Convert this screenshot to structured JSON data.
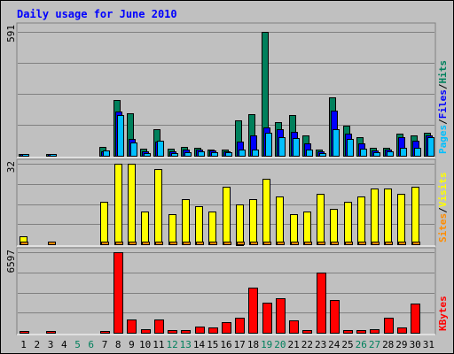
{
  "chart_data": {
    "type": "bar",
    "title": "Daily usage for June 2010",
    "days": [
      "1",
      "2",
      "3",
      "4",
      "5",
      "6",
      "7",
      "8",
      "9",
      "10",
      "11",
      "12",
      "13",
      "14",
      "15",
      "16",
      "17",
      "18",
      "19",
      "20",
      "21",
      "22",
      "23",
      "24",
      "25",
      "26",
      "27",
      "28",
      "29",
      "30",
      "31"
    ],
    "weekend_days": [
      "5",
      "6",
      "12",
      "13",
      "19",
      "20",
      "26",
      "27"
    ],
    "hits_panel": {
      "max_label": "591",
      "ymax": 591,
      "series": [
        {
          "name": "Hits",
          "color": "#00805c",
          "values": [
            4,
            0,
            8,
            0,
            0,
            0,
            44,
            268,
            202,
            34,
            128,
            32,
            44,
            40,
            30,
            28,
            168,
            200,
            591,
            162,
            196,
            98,
            30,
            280,
            142,
            90,
            36,
            36,
            106,
            96,
            110
          ]
        },
        {
          "name": "Files",
          "color": "#0000ff",
          "values": [
            3,
            0,
            5,
            0,
            0,
            0,
            22,
            212,
            82,
            22,
            66,
            20,
            30,
            30,
            24,
            22,
            68,
            96,
            136,
            126,
            112,
            58,
            20,
            214,
            104,
            58,
            26,
            28,
            88,
            72,
            98
          ]
        },
        {
          "name": "Pages",
          "color": "#00bfff",
          "values": [
            2,
            0,
            3,
            0,
            0,
            0,
            24,
            196,
            62,
            12,
            70,
            14,
            18,
            22,
            16,
            16,
            30,
            28,
            108,
            90,
            86,
            30,
            14,
            126,
            82,
            34,
            18,
            20,
            36,
            38,
            88
          ]
        }
      ],
      "legend": [
        {
          "label": "Pages",
          "color": "#00bfff"
        },
        {
          "label": "Files",
          "color": "#0000ff"
        },
        {
          "label": "Hits",
          "color": "#00805c"
        }
      ]
    },
    "visits_panel": {
      "max_label": "32",
      "ymax": 32,
      "series": [
        {
          "name": "Visits",
          "color": "#ffff00",
          "values": [
            3,
            0,
            0,
            0,
            0,
            0,
            17,
            32,
            32,
            13,
            30,
            12,
            18,
            15,
            13,
            23,
            16,
            18,
            26,
            19,
            12,
            13,
            20,
            14,
            17,
            19,
            22,
            22,
            20,
            23,
            0
          ]
        },
        {
          "name": "Sites",
          "color": "#ff8c00",
          "values": [
            1,
            0,
            1,
            0,
            0,
            0,
            1,
            1,
            1,
            1,
            1,
            1,
            1,
            1,
            1,
            1,
            1,
            1,
            1,
            1,
            1,
            1,
            1,
            1,
            1,
            1,
            1,
            1,
            1,
            1,
            0
          ]
        }
      ],
      "legend": [
        {
          "label": "Sites",
          "color": "#ff8c00"
        },
        {
          "label": "Visits",
          "color": "#ffff00"
        }
      ]
    },
    "kbytes_panel": {
      "max_label": "6597",
      "ymax": 6597,
      "series": [
        {
          "name": "KBytes",
          "color": "#ff0000",
          "values": [
            80,
            0,
            100,
            0,
            0,
            0,
            150,
            6597,
            1100,
            270,
            1100,
            220,
            250,
            500,
            430,
            900,
            1240,
            3700,
            2450,
            2850,
            990,
            200,
            4900,
            2700,
            190,
            250,
            300,
            1200,
            400,
            2400,
            0
          ]
        }
      ],
      "legend": [
        {
          "label": "KBytes",
          "color": "#ff0000"
        }
      ]
    }
  }
}
